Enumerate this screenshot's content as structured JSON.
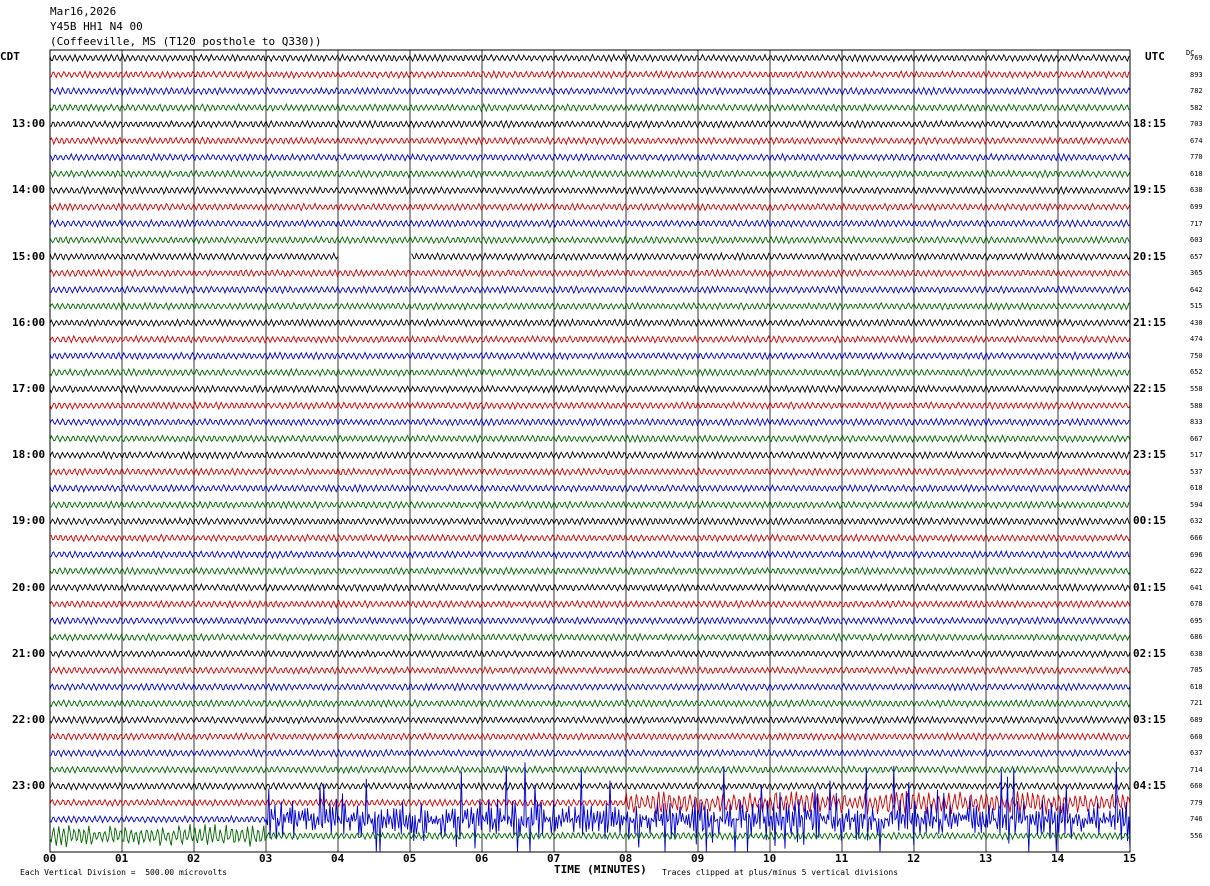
{
  "header": {
    "date": "Mar16,2026",
    "station": "Y45B HH1 N4 00",
    "location": "(Coffeeville, MS (T120 posthole to Q330))"
  },
  "left_tz": "CDT",
  "right_tz": "UTC",
  "dc_header": "DC",
  "colors": {
    "trace_cycle": [
      "#000000",
      "#cc0000",
      "#0000cc",
      "#006600"
    ],
    "grid": "#000000"
  },
  "chart_data": {
    "type": "line",
    "subtype": "helicorder",
    "xlabel": "TIME (MINUTES)",
    "x_ticks": [
      "00",
      "01",
      "02",
      "03",
      "04",
      "05",
      "06",
      "07",
      "08",
      "09",
      "10",
      "11",
      "12",
      "13",
      "14",
      "15"
    ],
    "xlim": [
      0,
      15
    ],
    "row_minutes": 15,
    "left_hour_labels": [
      "13:00",
      "14:00",
      "15:00",
      "16:00",
      "17:00",
      "18:00",
      "19:00",
      "20:00",
      "21:00",
      "22:00",
      "23:00"
    ],
    "right_hour_labels": [
      "18:15",
      "19:15",
      "20:15",
      "21:15",
      "22:15",
      "23:15",
      "00:15",
      "01:15",
      "02:15",
      "03:15",
      "04:15"
    ],
    "dc_offsets": [
      769,
      893,
      782,
      582,
      703,
      674,
      770,
      618,
      638,
      699,
      717,
      603,
      657,
      365,
      642,
      515,
      430,
      474,
      750,
      652,
      558,
      588,
      833,
      667,
      517,
      537,
      618,
      594,
      632,
      666,
      696,
      622,
      641,
      678,
      695,
      686,
      638,
      705,
      618,
      721,
      689,
      660,
      637,
      714,
      660,
      779,
      746,
      556
    ],
    "data_gap": {
      "row": 12,
      "start_minute": 4.0,
      "end_minute": 5.0
    },
    "large_amplitude_events": [
      {
        "row": 45,
        "start_minute": 8.0,
        "end_minute": 15.0,
        "level": "moderate"
      },
      {
        "row": 46,
        "start_minute": 3.0,
        "end_minute": 15.0,
        "level": "high_clipped"
      },
      {
        "row": 47,
        "start_minute": 0.0,
        "end_minute": 3.0,
        "level": "moderate"
      }
    ],
    "scale_note": "Each Vertical Division =  500.00 microvolts",
    "clip_note": "Traces clipped at plus/minus 5 vertical divisions"
  }
}
